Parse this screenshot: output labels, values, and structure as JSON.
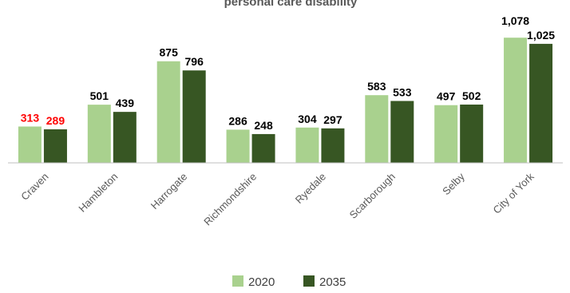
{
  "chart_data": {
    "type": "bar",
    "title": "personal care disability",
    "categories": [
      "Craven",
      "Hambleton",
      "Harrogate",
      "Richmondshire",
      "Ryedale",
      "Scarborough",
      "Selby",
      "City of York"
    ],
    "series": [
      {
        "name": "2020",
        "color": "#a9d18e",
        "values": [
          313,
          501,
          875,
          286,
          304,
          583,
          497,
          1078
        ],
        "labels": [
          "313",
          "501",
          "875",
          "286",
          "304",
          "583",
          "497",
          "1,078"
        ]
      },
      {
        "name": "2035",
        "color": "#375623",
        "values": [
          289,
          439,
          796,
          248,
          297,
          533,
          502,
          1025
        ],
        "labels": [
          "289",
          "439",
          "796",
          "248",
          "297",
          "533",
          "502",
          "1,025"
        ]
      }
    ],
    "ylim": [
      0,
      1100
    ],
    "xlabel": "",
    "ylabel": "",
    "grid": false,
    "legend_position": "bottom",
    "label_colors": {
      "default": "#000000",
      "highlight": "#ff0000"
    },
    "highlight_category": "Craven"
  }
}
